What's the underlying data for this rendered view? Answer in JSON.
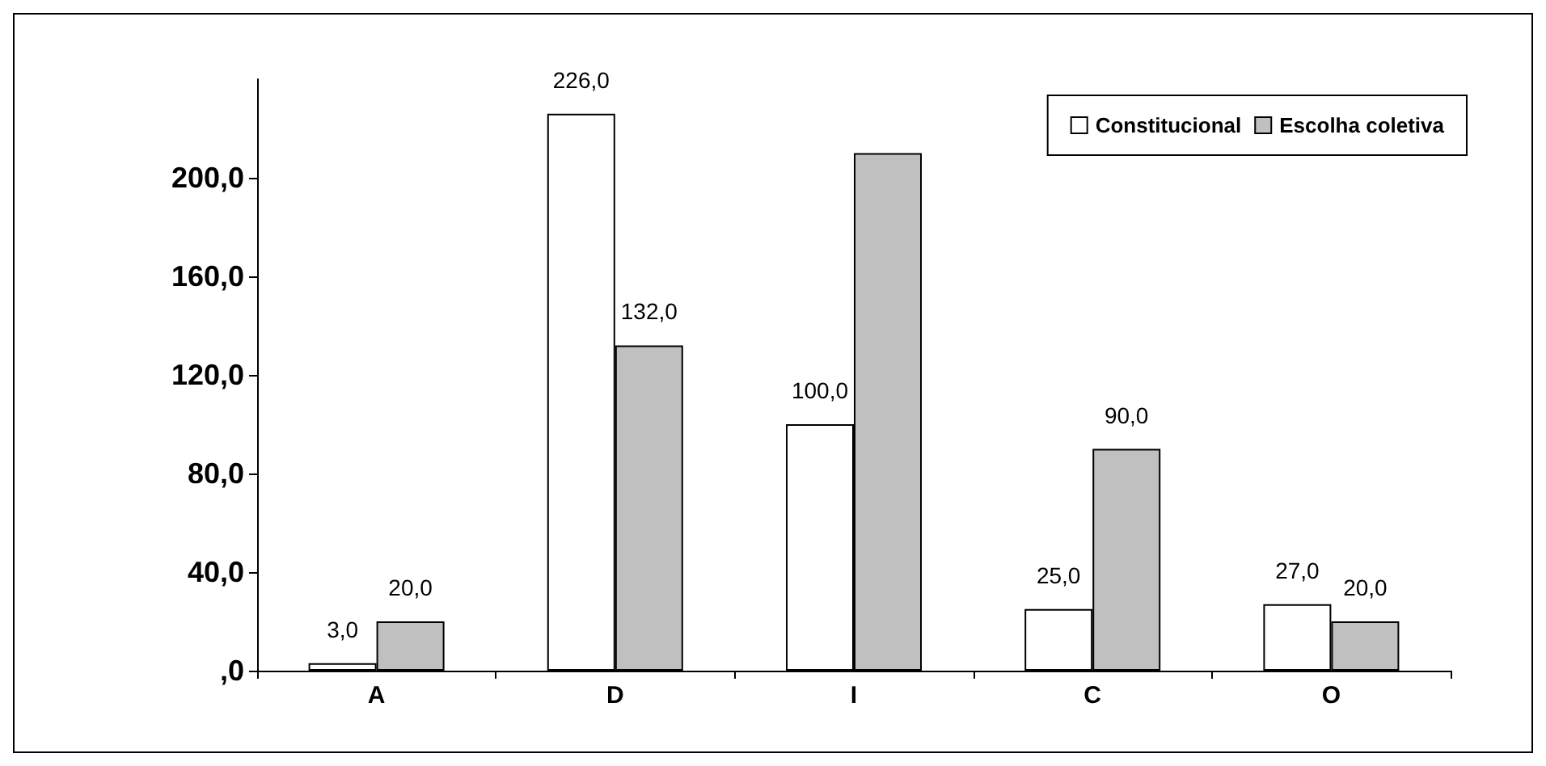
{
  "chart_data": {
    "type": "bar",
    "categories": [
      "A",
      "D",
      "I",
      "C",
      "O"
    ],
    "series": [
      {
        "name": "Constitucional",
        "color": "#ffffff",
        "values": [
          3,
          226,
          100,
          25,
          27
        ],
        "value_labels": [
          "3,0",
          "226,0",
          "100,0",
          "25,0",
          "27,0"
        ]
      },
      {
        "name": "Escolha coletiva",
        "color": "#c0c0c0",
        "values": [
          20,
          132,
          210,
          90,
          20
        ],
        "value_labels": [
          "20,0",
          "132,0",
          null,
          "90,0",
          "20,0"
        ]
      }
    ],
    "ylim": [
      0,
      240
    ],
    "yticks": [
      {
        "value": 0,
        "label": ",0"
      },
      {
        "value": 40,
        "label": "40,0"
      },
      {
        "value": 80,
        "label": "80,0"
      },
      {
        "value": 120,
        "label": "120,0"
      },
      {
        "value": 160,
        "label": "160,0"
      },
      {
        "value": 200,
        "label": "200,0"
      }
    ],
    "grid": false,
    "legend": "top right"
  }
}
